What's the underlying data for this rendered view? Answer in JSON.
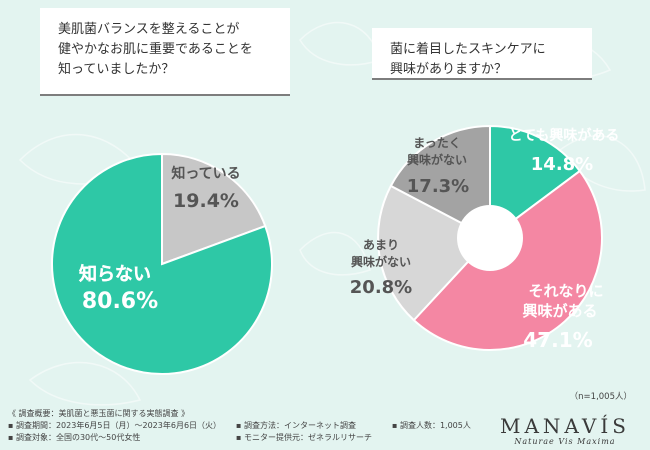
{
  "questions": {
    "q1": "美肌菌バランスを整えることが\n健やかなお肌に重要であることを\n知っていましたか？",
    "q2": "菌に着目したスキンケアに\n興味がありますか？"
  },
  "chart_data": [
    {
      "type": "pie",
      "title": "美肌菌バランスを整えることが健やかなお肌に重要であることを知っていましたか？",
      "slices": [
        {
          "label": "知っている",
          "value": 19.4,
          "value_text": "19.4%",
          "color": "#c7c7c7",
          "text_color": "#555555"
        },
        {
          "label": "知らない",
          "value": 80.6,
          "value_text": "80.6%",
          "color": "#2ec8a6",
          "text_color": "#ffffff"
        }
      ]
    },
    {
      "type": "pie",
      "title": "菌に着目したスキンケアに興味がありますか？",
      "slices": [
        {
          "label": "とても興味がある",
          "value": 14.8,
          "value_text": "14.8%",
          "color": "#2ec8a6",
          "text_color": "#ffffff"
        },
        {
          "label": "それなりに興味がある",
          "value": 47.1,
          "value_text": "47.1%",
          "color": "#f487a3",
          "text_color": "#ffffff"
        },
        {
          "label": "あまり興味がない",
          "value": 20.8,
          "value_text": "20.8%",
          "color": "#d7d7d7",
          "text_color": "#555555"
        },
        {
          "label": "まったく興味がない",
          "value": 17.3,
          "value_text": "17.3%",
          "color": "#a3a3a3",
          "text_color": "#555555"
        }
      ]
    }
  ],
  "labels": {
    "c1_s0_line1": "知っている",
    "c1_s1_line1": "知らない",
    "c2_s0_line1": "とても興味がある",
    "c2_s1_line1": "それなりに",
    "c2_s1_line2": "興味がある",
    "c2_s2_line1": "あまり",
    "c2_s2_line2": "興味がない",
    "c2_s3_line1": "まったく",
    "c2_s3_line2": "興味がない"
  },
  "sample_size": "（n=1,005人）",
  "footer": {
    "overview": "《 調査概要：美肌菌と悪玉菌に関する実態調査 》",
    "period": "▪ 調査期間：2023年6月5日（月）～2023年6月6日（火）",
    "target": "▪ 調査対象：全国の30代～50代女性",
    "method": "▪ 調査方法：インターネット調査",
    "provider": "▪ モニター提供元：ゼネラルリサーチ",
    "count": "▪ 調査人数：1,005人"
  },
  "brand": {
    "name": "MANAVÍS",
    "tagline": "Naturae Vis Maxima"
  }
}
